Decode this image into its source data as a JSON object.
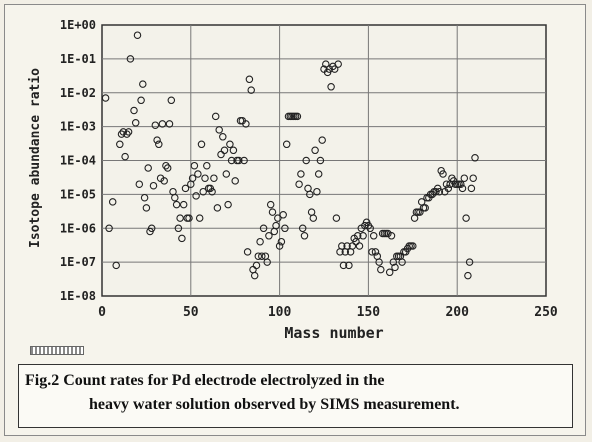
{
  "chart_data": {
    "type": "scatter",
    "xlabel": "Mass number",
    "ylabel": "Isotope abundance ratio",
    "xlim": [
      0,
      250
    ],
    "ylim": [
      1e-08,
      1
    ],
    "yscale": "log",
    "grid": true,
    "legend": "none",
    "xticks": [
      "0",
      "50",
      "100",
      "150",
      "200",
      "250"
    ],
    "yticks": [
      "1E-08",
      "1E-07",
      "1E-06",
      "1E-05",
      "1E-04",
      "1E-03",
      "1E-02",
      "1E-01",
      "1E+00"
    ],
    "series": [
      {
        "marker": "open-circle",
        "points": [
          [
            2,
            0.007
          ],
          [
            4,
            1e-06
          ],
          [
            6,
            6e-06
          ],
          [
            8,
            8e-08
          ],
          [
            10,
            0.0003
          ],
          [
            11,
            0.0006
          ],
          [
            12,
            0.0007
          ],
          [
            13,
            0.00013
          ],
          [
            14,
            0.0006
          ],
          [
            15,
            0.0007
          ],
          [
            16,
            0.1
          ],
          [
            18,
            0.003
          ],
          [
            19,
            0.0013
          ],
          [
            20,
            0.5
          ],
          [
            21,
            2e-05
          ],
          [
            22,
            0.006
          ],
          [
            23,
            0.018
          ],
          [
            24,
            8e-06
          ],
          [
            25,
            4e-06
          ],
          [
            26,
            6e-05
          ],
          [
            27,
            8e-07
          ],
          [
            28,
            1e-06
          ],
          [
            29,
            1.8e-05
          ],
          [
            30,
            0.0011
          ],
          [
            31,
            0.0004
          ],
          [
            32,
            0.0003
          ],
          [
            33,
            3e-05
          ],
          [
            34,
            0.0012
          ],
          [
            35,
            2.5e-05
          ],
          [
            36,
            7e-05
          ],
          [
            37,
            6e-05
          ],
          [
            38,
            0.0012
          ],
          [
            39,
            0.006
          ],
          [
            40,
            1.2e-05
          ],
          [
            41,
            8e-06
          ],
          [
            42,
            5e-06
          ],
          [
            43,
            1e-06
          ],
          [
            44,
            2e-06
          ],
          [
            45,
            5e-07
          ],
          [
            46,
            5e-06
          ],
          [
            47,
            1.5e-05
          ],
          [
            48,
            2e-06
          ],
          [
            49,
            2e-06
          ],
          [
            50,
            2e-05
          ],
          [
            51,
            3e-05
          ],
          [
            52,
            7e-05
          ],
          [
            53,
            9e-06
          ],
          [
            54,
            4e-05
          ],
          [
            55,
            2e-06
          ],
          [
            56,
            0.0003
          ],
          [
            57,
            1.2e-05
          ],
          [
            58,
            3e-05
          ],
          [
            59,
            7e-05
          ],
          [
            60,
            1.5e-05
          ],
          [
            61,
            1.5e-05
          ],
          [
            62,
            1.2e-05
          ],
          [
            63,
            3e-05
          ],
          [
            64,
            0.002
          ],
          [
            65,
            4e-06
          ],
          [
            66,
            0.0008
          ],
          [
            67,
            0.00015
          ],
          [
            68,
            0.0005
          ],
          [
            69,
            0.0002
          ],
          [
            70,
            4e-05
          ],
          [
            71,
            5e-06
          ],
          [
            72,
            0.0003
          ],
          [
            73,
            0.0001
          ],
          [
            74,
            0.0002
          ],
          [
            75,
            2.5e-05
          ],
          [
            76,
            0.0001
          ],
          [
            77,
            0.0001
          ],
          [
            78,
            0.0015
          ],
          [
            79,
            0.0015
          ],
          [
            80,
            0.0001
          ],
          [
            81,
            0.0012
          ],
          [
            82,
            2e-07
          ],
          [
            83,
            0.025
          ],
          [
            84,
            0.012
          ],
          [
            85,
            6e-08
          ],
          [
            86,
            4e-08
          ],
          [
            87,
            8e-08
          ],
          [
            88,
            1.5e-07
          ],
          [
            89,
            4e-07
          ],
          [
            90,
            1.5e-07
          ],
          [
            91,
            1e-06
          ],
          [
            92,
            1.5e-07
          ],
          [
            93,
            1e-07
          ],
          [
            94,
            6e-07
          ],
          [
            95,
            5e-06
          ],
          [
            96,
            3e-06
          ],
          [
            97,
            8e-07
          ],
          [
            98,
            1.2e-06
          ],
          [
            99,
            2e-06
          ],
          [
            100,
            3e-07
          ],
          [
            101,
            4e-07
          ],
          [
            102,
            2.5e-06
          ],
          [
            103,
            1e-06
          ],
          [
            104,
            0.0003
          ],
          [
            105,
            0.002
          ],
          [
            106,
            0.002
          ],
          [
            107,
            0.002
          ],
          [
            108,
            0.002
          ],
          [
            109,
            0.002
          ],
          [
            110,
            0.002
          ],
          [
            111,
            2e-05
          ],
          [
            112,
            4e-05
          ],
          [
            113,
            1e-06
          ],
          [
            114,
            6e-07
          ],
          [
            115,
            0.0001
          ],
          [
            116,
            1.5e-05
          ],
          [
            117,
            1e-05
          ],
          [
            118,
            3e-06
          ],
          [
            119,
            2e-06
          ],
          [
            120,
            0.0002
          ],
          [
            121,
            1.2e-05
          ],
          [
            122,
            4e-05
          ],
          [
            123,
            0.0001
          ],
          [
            124,
            0.0004
          ],
          [
            125,
            0.05
          ],
          [
            126,
            0.07
          ],
          [
            127,
            0.04
          ],
          [
            128,
            0.05
          ],
          [
            129,
            0.015
          ],
          [
            130,
            0.06
          ],
          [
            131,
            0.05
          ],
          [
            132,
            2e-06
          ],
          [
            133,
            0.07
          ],
          [
            134,
            2e-07
          ],
          [
            135,
            3e-07
          ],
          [
            136,
            8e-08
          ],
          [
            137,
            2e-07
          ],
          [
            138,
            3e-07
          ],
          [
            139,
            8e-08
          ],
          [
            140,
            2e-07
          ],
          [
            141,
            3e-07
          ],
          [
            142,
            5e-07
          ],
          [
            143,
            4e-07
          ],
          [
            144,
            6e-07
          ],
          [
            145,
            3e-07
          ],
          [
            146,
            1e-06
          ],
          [
            147,
            6e-07
          ],
          [
            148,
            1.2e-06
          ],
          [
            149,
            1.5e-06
          ],
          [
            150,
            1.2e-06
          ],
          [
            151,
            1e-06
          ],
          [
            152,
            2e-07
          ],
          [
            153,
            6e-07
          ],
          [
            154,
            2e-07
          ],
          [
            155,
            1.5e-07
          ],
          [
            156,
            1e-07
          ],
          [
            157,
            6e-08
          ],
          [
            158,
            7e-07
          ],
          [
            159,
            7e-07
          ],
          [
            160,
            7e-07
          ],
          [
            161,
            7e-07
          ],
          [
            162,
            5e-08
          ],
          [
            163,
            6e-07
          ],
          [
            164,
            1e-07
          ],
          [
            165,
            7e-08
          ],
          [
            166,
            1.5e-07
          ],
          [
            167,
            1.5e-07
          ],
          [
            168,
            1.5e-07
          ],
          [
            169,
            1e-07
          ],
          [
            170,
            2e-07
          ],
          [
            171,
            2e-07
          ],
          [
            172,
            2.5e-07
          ],
          [
            173,
            3e-07
          ],
          [
            174,
            3e-07
          ],
          [
            175,
            3e-07
          ],
          [
            176,
            2e-06
          ],
          [
            177,
            3e-06
          ],
          [
            178,
            3e-06
          ],
          [
            179,
            3e-06
          ],
          [
            180,
            6e-06
          ],
          [
            181,
            4e-06
          ],
          [
            182,
            4e-06
          ],
          [
            183,
            8e-06
          ],
          [
            184,
            8e-06
          ],
          [
            185,
            1e-05
          ],
          [
            186,
            1e-05
          ],
          [
            187,
            1.2e-05
          ],
          [
            188,
            1.2e-05
          ],
          [
            189,
            1.5e-05
          ],
          [
            190,
            1.2e-05
          ],
          [
            191,
            5e-05
          ],
          [
            192,
            4e-05
          ],
          [
            193,
            1.2e-05
          ],
          [
            194,
            2e-05
          ],
          [
            195,
            1.5e-05
          ],
          [
            196,
            2e-05
          ],
          [
            197,
            3e-05
          ],
          [
            198,
            2.5e-05
          ],
          [
            199,
            2e-05
          ],
          [
            200,
            2e-05
          ],
          [
            201,
            2e-05
          ],
          [
            202,
            2e-05
          ],
          [
            203,
            1.5e-05
          ],
          [
            204,
            3e-05
          ],
          [
            205,
            2e-06
          ],
          [
            206,
            4e-08
          ],
          [
            207,
            1e-07
          ],
          [
            208,
            1.5e-05
          ],
          [
            209,
            3e-05
          ],
          [
            210,
            0.00012
          ]
        ]
      }
    ]
  },
  "caption": {
    "line1": "Fig.2 Count rates for Pd electrode electrolyzed in the",
    "line2": "heavy water solution observed by SIMS measurement."
  }
}
